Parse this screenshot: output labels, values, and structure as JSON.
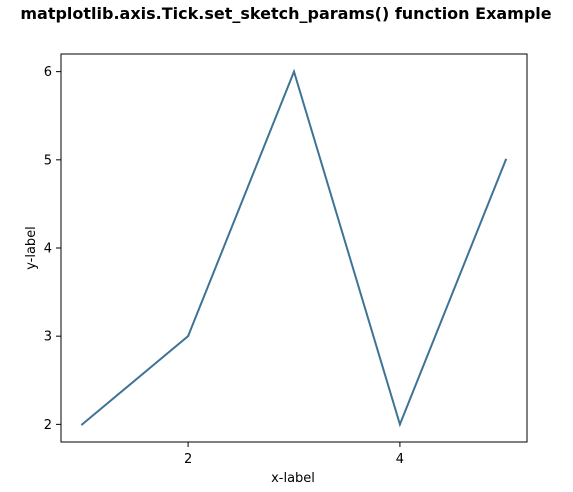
{
  "chart_data": {
    "type": "line",
    "title": "matplotlib.axis.Tick.set_sketch_params() function Example",
    "xlabel": "x-label",
    "ylabel": "y-label",
    "x": [
      1,
      2,
      3,
      4,
      5
    ],
    "series": [
      {
        "values": [
          2,
          3,
          6,
          2,
          5
        ],
        "color": "#3f7396"
      }
    ],
    "xlim": [
      0.8,
      5.2
    ],
    "ylim": [
      1.8,
      6.2
    ],
    "xticks": [
      2,
      4
    ],
    "xtick_labels": [
      "2",
      "4"
    ],
    "yticks": [
      2,
      3,
      4,
      5,
      6
    ],
    "ytick_labels": [
      "2",
      "3",
      "4",
      "5",
      "6"
    ],
    "grid": false,
    "legend": "none"
  }
}
